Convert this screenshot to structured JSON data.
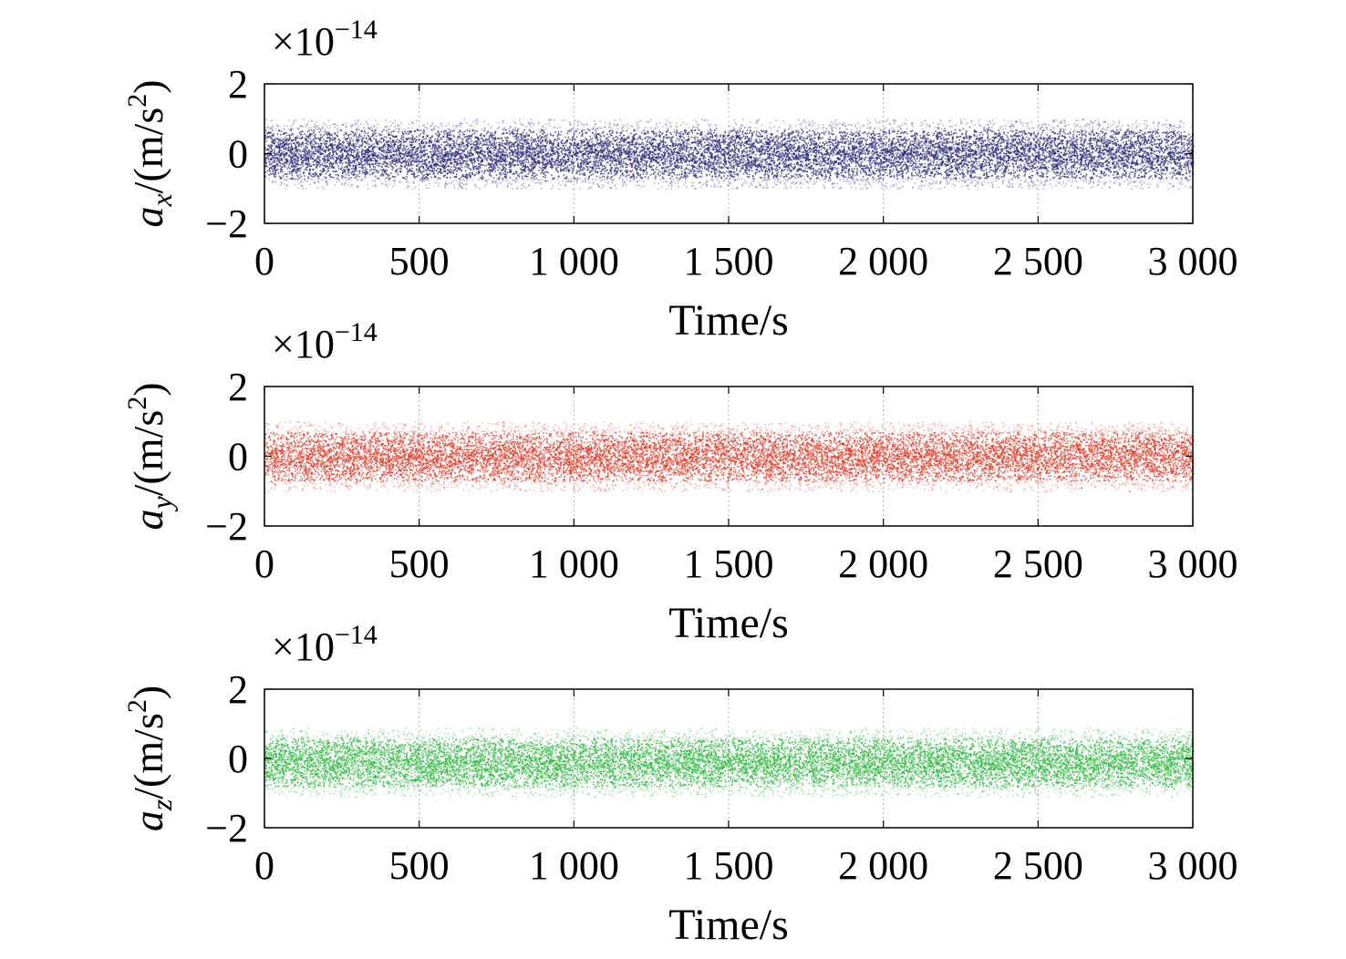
{
  "chart_data": [
    {
      "type": "scatter",
      "series": [
        {
          "name": "",
          "color": "#2b2b7a",
          "mean": 0,
          "std": 0.45,
          "envelope": 1.0,
          "x_range": [
            0,
            3000
          ],
          "n_points": 30000
        }
      ],
      "xlabel": "Time/s",
      "ylabel": {
        "base": "a",
        "subscript": "x",
        "unit_prefix": "/(m/s",
        "unit_power": "2",
        "unit_suffix": ")"
      },
      "y_multiplier": {
        "prefix": "×10",
        "exponent": "−14"
      },
      "xlim": [
        0,
        3000
      ],
      "ylim": [
        -2,
        2
      ],
      "xticks": [
        0,
        500,
        1000,
        1500,
        2000,
        2500,
        3000
      ],
      "xtick_labels": [
        "0",
        "500",
        "1 000",
        "1 500",
        "2 000",
        "2 500",
        "3 000"
      ],
      "yticks": [
        -2,
        0,
        2
      ],
      "ytick_labels": [
        "−2",
        "0",
        "2"
      ],
      "grid": true
    },
    {
      "type": "scatter",
      "series": [
        {
          "name": "",
          "color": "#e0402e",
          "mean": 0,
          "std": 0.45,
          "envelope": 1.0,
          "x_range": [
            0,
            3000
          ],
          "n_points": 30000
        }
      ],
      "xlabel": "Time/s",
      "ylabel": {
        "base": "a",
        "subscript": "y",
        "unit_prefix": "/(m/s",
        "unit_power": "2",
        "unit_suffix": ")"
      },
      "y_multiplier": {
        "prefix": "×10",
        "exponent": "−14"
      },
      "xlim": [
        0,
        3000
      ],
      "ylim": [
        -2,
        2
      ],
      "xticks": [
        0,
        500,
        1000,
        1500,
        2000,
        2500,
        3000
      ],
      "xtick_labels": [
        "0",
        "500",
        "1 000",
        "1 500",
        "2 000",
        "2 500",
        "3 000"
      ],
      "yticks": [
        -2,
        0,
        2
      ],
      "ytick_labels": [
        "−2",
        "0",
        "2"
      ],
      "grid": true
    },
    {
      "type": "scatter",
      "series": [
        {
          "name": "",
          "color": "#33bb44",
          "mean": -0.1,
          "std": 0.45,
          "envelope": 1.0,
          "x_range": [
            0,
            3000
          ],
          "n_points": 30000
        }
      ],
      "xlabel": "Time/s",
      "ylabel": {
        "base": "a",
        "subscript": "z",
        "unit_prefix": "/(m/s",
        "unit_power": "2",
        "unit_suffix": ")"
      },
      "y_multiplier": {
        "prefix": "×10",
        "exponent": "−14"
      },
      "xlim": [
        0,
        3000
      ],
      "ylim": [
        -2,
        2
      ],
      "xticks": [
        0,
        500,
        1000,
        1500,
        2000,
        2500,
        3000
      ],
      "xtick_labels": [
        "0",
        "500",
        "1 000",
        "1 500",
        "2 000",
        "2 500",
        "3 000"
      ],
      "yticks": [
        -2,
        0,
        2
      ],
      "ytick_labels": [
        "−2",
        "0",
        "2"
      ],
      "grid": true
    }
  ]
}
